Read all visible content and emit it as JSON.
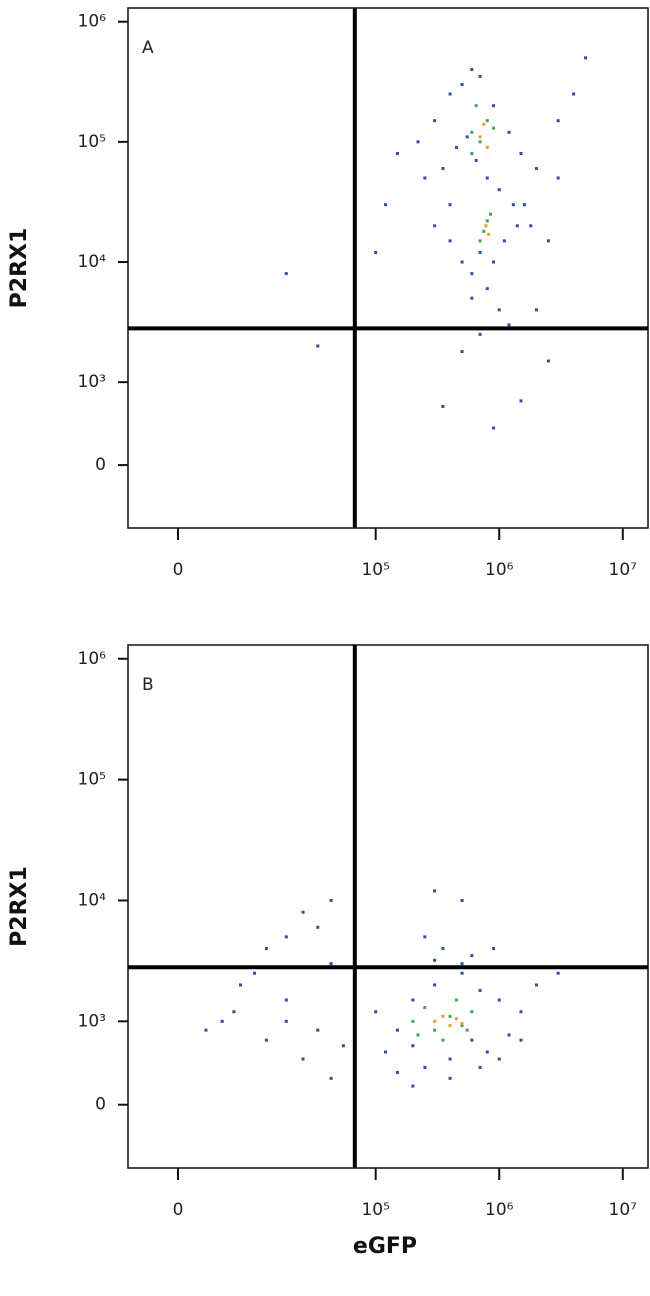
{
  "chart_data": [
    {
      "type": "scatter",
      "panel_label": "A",
      "ylabel": "P2RX1",
      "xscale": "biex",
      "yscale": "biex",
      "xlim": [
        -6400,
        16000000
      ],
      "ylim": [
        -576,
        1300000
      ],
      "xticks": [
        0,
        {
          "value": 100000,
          "label": "10⁵"
        },
        {
          "value": 1000000,
          "label": "10⁶"
        },
        {
          "value": 10000000,
          "label": "10⁷"
        }
      ],
      "yticks": [
        0,
        {
          "value": 1000,
          "label": "10³"
        },
        {
          "value": 10000,
          "label": "10⁴"
        },
        {
          "value": 100000,
          "label": "10⁵"
        },
        {
          "value": 1000000,
          "label": "10⁶"
        }
      ],
      "gates": {
        "x": 80000,
        "y": 2800
      },
      "series": [
        {
          "color": "#2f4f9e",
          "x": [
            300000.0,
            400000.0,
            500000.0,
            600000.0,
            700000.0,
            900000.0,
            1200000.0,
            1500000.0,
            2000000.0,
            3000000.0,
            350000.0,
            450000.0,
            550000.0,
            650000.0,
            800000.0,
            1000000.0,
            1300000.0,
            1800000.0,
            2500000.0,
            400000.0,
            500000.0,
            600000.0,
            700000.0,
            900000.0,
            1100000.0,
            1400000.0,
            300000.0,
            400000.0,
            600000.0,
            800000.0,
            1000000.0,
            1600000.0,
            220000.0,
            250000.0,
            150000.0,
            120000.0,
            100000.0,
            30000.0,
            50000.0,
            2000000.0,
            3000000.0,
            4000000.0,
            5000000.0,
            1200000.0,
            700000.0,
            500000.0,
            350000.0,
            2500000.0,
            1500000.0,
            900000.0
          ],
          "values": [
            150000.0,
            250000.0,
            300000.0,
            400000.0,
            350000.0,
            200000.0,
            120000.0,
            80000.0,
            60000.0,
            50000.0,
            60000.0,
            90000.0,
            110000.0,
            70000.0,
            50000.0,
            40000.0,
            30000.0,
            20000.0,
            15000.0,
            15000.0,
            10000.0,
            8000.0,
            12000.0,
            10000.0,
            15000.0,
            20000.0,
            20000.0,
            30000.0,
            5000.0,
            6000.0,
            4000.0,
            30000.0,
            100000.0,
            50000.0,
            80000.0,
            30000.0,
            12000.0,
            8000.0,
            2000.0,
            4000.0,
            150000.0,
            250000.0,
            500000.0,
            3000.0,
            2500.0,
            1800.0,
            500,
            1500.0,
            600,
            200
          ]
        },
        {
          "color": "#3aa84a",
          "x": [
            600000.0,
            700000.0,
            800000.0,
            650000.0,
            750000.0,
            800000.0,
            700000.0,
            850000.0,
            600000.0,
            900000.0
          ],
          "values": [
            120000.0,
            100000.0,
            150000.0,
            200000.0,
            18000.0,
            22000.0,
            15000.0,
            25000.0,
            80000.0,
            130000.0
          ]
        },
        {
          "color": "#e8a020",
          "x": [
            700000.0,
            750000.0,
            800000.0,
            780000.0,
            820000.0
          ],
          "values": [
            110000.0,
            140000.0,
            90000.0,
            20000.0,
            17000.0
          ]
        }
      ]
    },
    {
      "type": "scatter",
      "panel_label": "B",
      "ylabel": "P2RX1",
      "xlabel": "eGFP",
      "xscale": "biex",
      "yscale": "biex",
      "xlim": [
        -6400,
        16000000
      ],
      "ylim": [
        -576,
        1300000
      ],
      "xticks": [
        0,
        {
          "value": 100000,
          "label": "10⁵"
        },
        {
          "value": 1000000,
          "label": "10⁶"
        },
        {
          "value": 10000000,
          "label": "10⁷"
        }
      ],
      "yticks": [
        0,
        {
          "value": 1000,
          "label": "10³"
        },
        {
          "value": 10000,
          "label": "10⁴"
        },
        {
          "value": 100000,
          "label": "10⁵"
        },
        {
          "value": 1000000,
          "label": "10⁶"
        }
      ],
      "gates": {
        "x": 80000,
        "y": 2800
      },
      "series": [
        {
          "color": "#2f4f9e",
          "x": [
            100000.0,
            150000.0,
            200000.0,
            300000.0,
            500000.0,
            700000.0,
            1000000.0,
            1500000.0,
            2000000.0,
            3000000.0,
            120000.0,
            200000.0,
            400000.0,
            600000.0,
            800000.0,
            1200000.0,
            250000.0,
            350000.0,
            500000.0,
            900000.0,
            30000.0,
            40000.0,
            50000.0,
            60000.0,
            20000.0,
            10000.0,
            5000.0,
            30000.0,
            50000.0,
            70000.0,
            40000.0,
            60000.0,
            20000.0,
            150000.0,
            250000.0,
            400000.0,
            700000.0,
            1000000.0,
            300000.0,
            500000.0,
            2000.0,
            8000.0,
            15000.0,
            30000.0,
            60000.0,
            180000.0,
            300000.0,
            600000.0,
            1500000.0,
            200000.0
          ],
          "values": [
            1200.0,
            800,
            1500.0,
            2000.0,
            2500.0,
            1800.0,
            1500.0,
            1200.0,
            2000.0,
            2500.0,
            400,
            500,
            300,
            600,
            400,
            700,
            5000.0,
            4000.0,
            3000.0,
            4000.0,
            5000.0,
            8000.0,
            6000.0,
            10000.0,
            4000.0,
            2000.0,
            1000.0,
            1500.0,
            800,
            500,
            300,
            100,
            600,
            150,
            200,
            100,
            200,
            300,
            12000.0,
            10000.0,
            800,
            1200.0,
            2500.0,
            1000.0,
            3000.0,
            2800.0,
            3200.0,
            3500.0,
            600,
            50
          ]
        },
        {
          "color": "#3aa84a",
          "x": [
            200000.0,
            250000.0,
            300000.0,
            400000.0,
            500000.0,
            600000.0,
            350000.0,
            450000.0,
            220000.0,
            550000.0
          ],
          "values": [
            1000.0,
            1300.0,
            800,
            1100.0,
            900,
            1200.0,
            600,
            1500.0,
            700,
            800
          ]
        },
        {
          "color": "#e8a020",
          "x": [
            300000.0,
            350000.0,
            400000.0,
            450000.0,
            500000.0
          ],
          "values": [
            1000.0,
            1100.0,
            900,
            1050.0,
            950
          ]
        }
      ]
    }
  ]
}
